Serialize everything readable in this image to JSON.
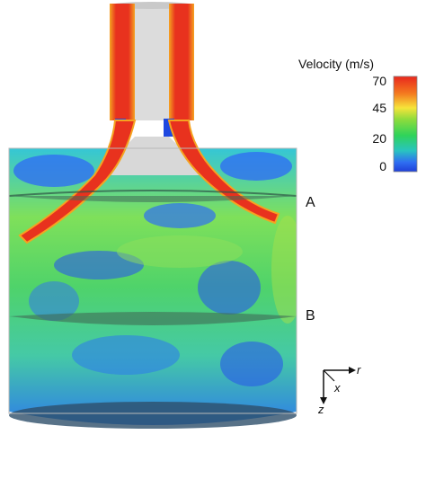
{
  "legend": {
    "title": "Velocity  (m/s)",
    "ticks": [
      "70",
      "45",
      "20",
      "0"
    ],
    "colors": [
      "#e8271d",
      "#f47a1f",
      "#f6e43a",
      "#8fdc3c",
      "#2fd35a",
      "#29c4c0",
      "#2f6ff2",
      "#1f3fd8"
    ]
  },
  "planes": {
    "a_label": "A",
    "b_label": "B"
  },
  "axes": {
    "r_label": "r",
    "x_label": "x",
    "z_label": "z"
  },
  "colors": {
    "jet": "#e8321e",
    "jet_edge": "#f5a321",
    "field_green": "#6fe06a",
    "field_blue": "#2e62e8",
    "pipe_gray": "#d8d8d8",
    "plane_gray": "#3f6a55"
  }
}
